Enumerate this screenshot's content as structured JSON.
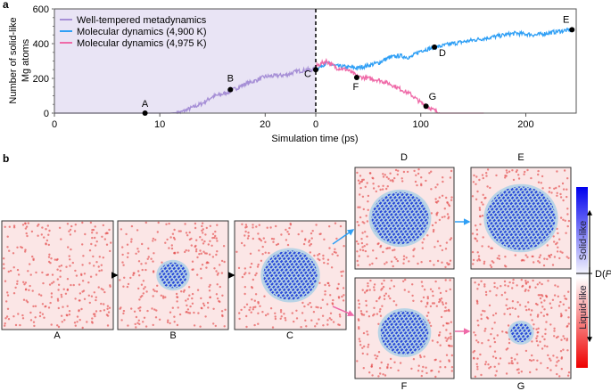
{
  "panel_a_label": "a",
  "panel_b_label": "b",
  "chart_data": {
    "type": "line",
    "ylabel": "Number of solid-like Mg atoms",
    "xlabel": "Simulation time (ps)",
    "ylim": [
      0,
      600
    ],
    "yticks": [
      "0",
      "200",
      "400",
      "600"
    ],
    "left_segment": {
      "xlim": [
        0,
        24.8
      ],
      "xticks": [
        "0",
        "10",
        "20"
      ],
      "background": "#e9e4f5"
    },
    "right_segment": {
      "xlim": [
        0,
        248
      ],
      "xticks": [
        "0",
        "100",
        "200"
      ]
    },
    "legend_position": "top-left",
    "series": [
      {
        "name": "Well-tempered metadynamics",
        "segment": "left",
        "color": "#a68fd6",
        "x": [
          0,
          11,
          12,
          13,
          14,
          15,
          16,
          17,
          18,
          19,
          20,
          21,
          22,
          23,
          24,
          24.8
        ],
        "y": [
          0,
          0,
          5,
          30,
          55,
          95,
          110,
          135,
          165,
          185,
          210,
          215,
          220,
          240,
          250,
          250
        ]
      },
      {
        "name": "Molecular dynamics (4,900 K)",
        "segment": "right",
        "color": "#2f9ff5",
        "x": [
          0,
          10,
          20,
          40,
          60,
          70,
          80,
          90,
          100,
          115,
          130,
          150,
          170,
          190,
          210,
          230,
          244
        ],
        "y": [
          250,
          290,
          270,
          260,
          290,
          320,
          330,
          320,
          360,
          380,
          400,
          420,
          440,
          460,
          450,
          470,
          480
        ]
      },
      {
        "name": "Molecular dynamics (4,975 K)",
        "segment": "right",
        "color": "#ef6aa8",
        "x": [
          0,
          10,
          20,
          30,
          40,
          60,
          70,
          80,
          90,
          100,
          110,
          118,
          160
        ],
        "y": [
          270,
          300,
          260,
          250,
          210,
          190,
          170,
          140,
          110,
          60,
          25,
          0,
          0
        ]
      }
    ],
    "markers": [
      {
        "label": "A",
        "segment": "left",
        "x": 8.6,
        "y": 0
      },
      {
        "label": "B",
        "segment": "left",
        "x": 16.7,
        "y": 135
      },
      {
        "label": "C",
        "segment": "right",
        "x": 0,
        "y": 250
      },
      {
        "label": "D",
        "segment": "right",
        "x": 113,
        "y": 380
      },
      {
        "label": "E",
        "segment": "right",
        "x": 244,
        "y": 480
      },
      {
        "label": "F",
        "segment": "right",
        "x": 39,
        "y": 205
      },
      {
        "label": "G",
        "segment": "right",
        "x": 105,
        "y": 40
      }
    ]
  },
  "snapshots": [
    {
      "label": "A",
      "nucleus": 0
    },
    {
      "label": "B",
      "nucleus": 0.22
    },
    {
      "label": "C",
      "nucleus": 0.42
    },
    {
      "label": "D",
      "nucleus": 0.5
    },
    {
      "label": "E",
      "nucleus": 0.6
    },
    {
      "label": "F",
      "nucleus": 0.42
    },
    {
      "label": "G",
      "nucleus": 0.18
    }
  ],
  "colorbar": {
    "top_label": "Solid-like",
    "bottom_label": "Liquid-like",
    "axis_label_prefix": "D(",
    "axis_label_var": "P",
    "axis_label_suffix": ")",
    "top_color": "#0000ee",
    "bottom_color": "#ee0000"
  },
  "arrow_colors": {
    "black": "#000000",
    "blue": "#2f9ff5",
    "pink": "#ef6aa8"
  }
}
